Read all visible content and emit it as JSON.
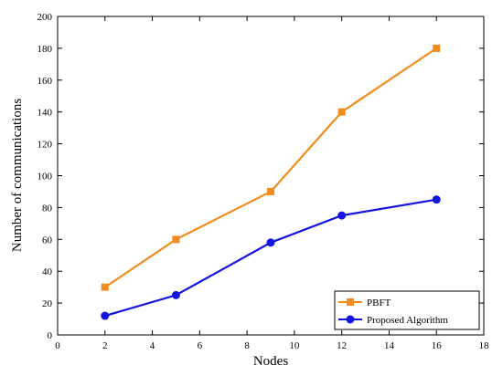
{
  "chart_data": {
    "type": "line",
    "title": "",
    "xlabel": "Nodes",
    "ylabel": "Number of communications",
    "xlim": [
      0,
      18
    ],
    "ylim": [
      0,
      200
    ],
    "xticks": [
      "0",
      "2",
      "4",
      "6",
      "8",
      "10",
      "12",
      "14",
      "16",
      "18"
    ],
    "yticks": [
      "0",
      "20",
      "40",
      "60",
      "80",
      "100",
      "120",
      "140",
      "160",
      "180",
      "200"
    ],
    "grid": false,
    "legend_position": "bottom-right",
    "series": [
      {
        "name": "PBFT",
        "color": "#F28C1E",
        "marker": "square",
        "x": [
          2,
          5,
          9,
          12,
          16
        ],
        "y": [
          30,
          60,
          90,
          140,
          180
        ]
      },
      {
        "name": "Proposed Algorithm",
        "color": "#1414E0",
        "marker": "circle",
        "x": [
          2,
          5,
          9,
          12,
          16
        ],
        "y": [
          12,
          25,
          58,
          75,
          85
        ]
      }
    ]
  }
}
